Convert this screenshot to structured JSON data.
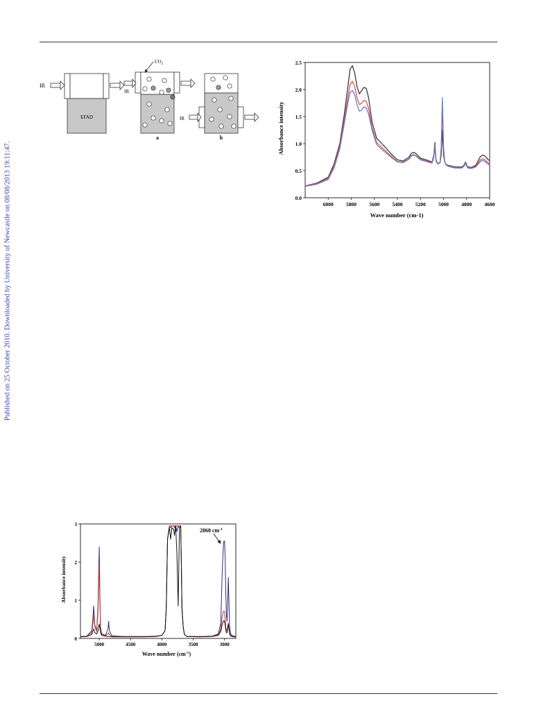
{
  "sidebar_note": "Published on 25 October 2010. Downloaded by University of Newcastle on 08/08/2013 19:11:47.",
  "diagram": {
    "ir_label": "IR",
    "efad_label": "EFAD",
    "co2_label": "CO",
    "co2_subscript": "2",
    "panel_a_label": "a",
    "panel_b_label": "b"
  },
  "chart_data": [
    {
      "type": "line",
      "xlabel": "Wave number (cm-1)",
      "ylabel": "Absorbance intensity",
      "xlim": [
        6200,
        4600
      ],
      "ylim": [
        0,
        2.5
      ],
      "x_reversed": true,
      "xticks": [
        "6000",
        "5800",
        "5600",
        "5400",
        "5200",
        "5000",
        "4800",
        "4600"
      ],
      "yticks": [
        "0.0",
        "0.5",
        "1.0",
        "1.5",
        "2.0",
        "2.5"
      ],
      "x": [
        6200,
        6100,
        6000,
        5950,
        5900,
        5860,
        5830,
        5810,
        5790,
        5770,
        5750,
        5730,
        5710,
        5690,
        5670,
        5650,
        5620,
        5580,
        5500,
        5450,
        5400,
        5350,
        5300,
        5280,
        5260,
        5240,
        5200,
        5150,
        5100,
        5085,
        5075,
        5065,
        5050,
        5030,
        5020,
        5010,
        5000,
        4990,
        4980,
        4960,
        4900,
        4840,
        4820,
        4810,
        4800,
        4790,
        4760,
        4720,
        4700,
        4680,
        4660,
        4640,
        4620,
        4600
      ],
      "series": [
        {
          "color": "#3a3a3a",
          "values": [
            0.22,
            0.27,
            0.38,
            0.62,
            1.0,
            1.55,
            2.05,
            2.38,
            2.44,
            2.3,
            2.05,
            1.92,
            1.98,
            2.04,
            2.02,
            1.85,
            1.4,
            1.1,
            0.92,
            0.8,
            0.7,
            0.68,
            0.75,
            0.82,
            0.84,
            0.82,
            0.73,
            0.7,
            0.66,
            0.78,
            1.02,
            0.7,
            0.63,
            0.65,
            0.8,
            1.25,
            0.8,
            0.66,
            0.62,
            0.6,
            0.57,
            0.57,
            0.61,
            0.66,
            0.61,
            0.57,
            0.56,
            0.6,
            0.68,
            0.76,
            0.79,
            0.77,
            0.72,
            0.68
          ]
        },
        {
          "color": "#d9534f",
          "values": [
            0.22,
            0.26,
            0.36,
            0.58,
            0.95,
            1.45,
            1.85,
            2.1,
            2.15,
            2.05,
            1.85,
            1.72,
            1.75,
            1.8,
            1.78,
            1.65,
            1.3,
            1.02,
            0.86,
            0.76,
            0.67,
            0.66,
            0.72,
            0.78,
            0.8,
            0.78,
            0.71,
            0.68,
            0.65,
            0.76,
            0.98,
            0.69,
            0.63,
            0.66,
            0.9,
            1.7,
            0.9,
            0.67,
            0.62,
            0.59,
            0.56,
            0.56,
            0.6,
            0.64,
            0.6,
            0.56,
            0.55,
            0.58,
            0.64,
            0.7,
            0.72,
            0.7,
            0.66,
            0.62
          ]
        },
        {
          "color": "#6a79c9",
          "values": [
            0.21,
            0.25,
            0.34,
            0.55,
            0.9,
            1.38,
            1.75,
            1.95,
            1.98,
            1.9,
            1.72,
            1.6,
            1.62,
            1.68,
            1.66,
            1.55,
            1.25,
            0.98,
            0.83,
            0.74,
            0.66,
            0.65,
            0.71,
            0.77,
            0.79,
            0.77,
            0.7,
            0.67,
            0.64,
            0.74,
            0.95,
            0.68,
            0.62,
            0.65,
            0.95,
            1.85,
            0.95,
            0.67,
            0.61,
            0.58,
            0.55,
            0.55,
            0.59,
            0.63,
            0.59,
            0.55,
            0.54,
            0.57,
            0.62,
            0.67,
            0.69,
            0.67,
            0.63,
            0.6
          ]
        }
      ]
    },
    {
      "type": "line",
      "xlabel": "Wave number (cm",
      "xlabel_sup": "-1",
      "xlabel_tail": ")",
      "ylabel": "Absorbance intensity",
      "annotation": "2860 cm",
      "annotation_sup": "-1",
      "xlim": [
        5300,
        2820
      ],
      "ylim": [
        0,
        3
      ],
      "x_reversed": true,
      "xticks": [
        "5000",
        "4500",
        "4000",
        "3500",
        "3000"
      ],
      "yticks": [
        "0",
        "1",
        "2",
        "3"
      ],
      "x": [
        5300,
        5200,
        5120,
        5100,
        5090,
        5070,
        5040,
        5020,
        5000,
        4990,
        4980,
        4960,
        4900,
        4860,
        4850,
        4840,
        4800,
        4600,
        4300,
        4100,
        4000,
        3950,
        3930,
        3910,
        3880,
        3860,
        3840,
        3810,
        3800,
        3780,
        3760,
        3740,
        3720,
        3700,
        3690,
        3680,
        3660,
        3640,
        3600,
        3400,
        3200,
        3100,
        3060,
        3040,
        3020,
        3010,
        3000,
        2990,
        2980,
        2970,
        2960,
        2950,
        2940,
        2930,
        2920,
        2910,
        2900,
        2880,
        2860,
        2840,
        2820
      ],
      "series": [
        {
          "color": "#2b2b80",
          "values": [
            0.05,
            0.06,
            0.2,
            0.55,
            0.85,
            0.35,
            0.2,
            0.85,
            2.4,
            1.2,
            0.3,
            0.12,
            0.08,
            0.25,
            0.45,
            0.22,
            0.07,
            0.05,
            0.05,
            0.06,
            0.08,
            0.2,
            0.8,
            2.6,
            2.95,
            2.9,
            2.95,
            2.95,
            2.9,
            2.95,
            2.8,
            2.95,
            2.9,
            2.95,
            2.0,
            0.8,
            0.3,
            0.1,
            0.05,
            0.05,
            0.06,
            0.12,
            0.4,
            1.6,
            2.4,
            2.55,
            2.55,
            2.1,
            1.2,
            0.6,
            0.45,
            0.9,
            1.6,
            1.0,
            0.35,
            0.2,
            0.12,
            0.08,
            0.06,
            0.06,
            0.06
          ]
        },
        {
          "color": "#c0392b",
          "values": [
            0.05,
            0.06,
            0.15,
            0.4,
            0.65,
            0.3,
            0.18,
            0.7,
            1.95,
            1.0,
            0.28,
            0.11,
            0.07,
            0.12,
            0.15,
            0.1,
            0.06,
            0.05,
            0.05,
            0.06,
            0.08,
            0.2,
            0.8,
            2.6,
            2.95,
            2.95,
            2.95,
            2.95,
            2.95,
            2.95,
            2.95,
            2.95,
            2.95,
            2.95,
            2.1,
            0.85,
            0.3,
            0.1,
            0.05,
            0.05,
            0.06,
            0.1,
            0.25,
            0.55,
            0.7,
            0.72,
            0.7,
            0.5,
            0.3,
            0.22,
            0.2,
            0.3,
            0.4,
            0.28,
            0.15,
            0.1,
            0.08,
            0.06,
            0.05,
            0.05,
            0.05
          ]
        },
        {
          "color": "#111111",
          "values": [
            0.04,
            0.05,
            0.1,
            0.2,
            0.25,
            0.15,
            0.12,
            0.2,
            0.38,
            0.28,
            0.15,
            0.08,
            0.06,
            0.05,
            0.05,
            0.05,
            0.04,
            0.04,
            0.04,
            0.05,
            0.08,
            0.2,
            0.8,
            2.6,
            2.9,
            2.6,
            2.9,
            2.85,
            2.7,
            2.95,
            2.2,
            0.85,
            2.9,
            2.95,
            2.0,
            0.8,
            0.3,
            0.1,
            0.05,
            0.04,
            0.05,
            0.08,
            0.18,
            0.35,
            0.45,
            0.47,
            0.45,
            0.35,
            0.22,
            0.15,
            0.15,
            0.25,
            0.38,
            0.25,
            0.12,
            0.08,
            0.06,
            0.05,
            0.04,
            0.04,
            0.04
          ]
        }
      ]
    }
  ]
}
